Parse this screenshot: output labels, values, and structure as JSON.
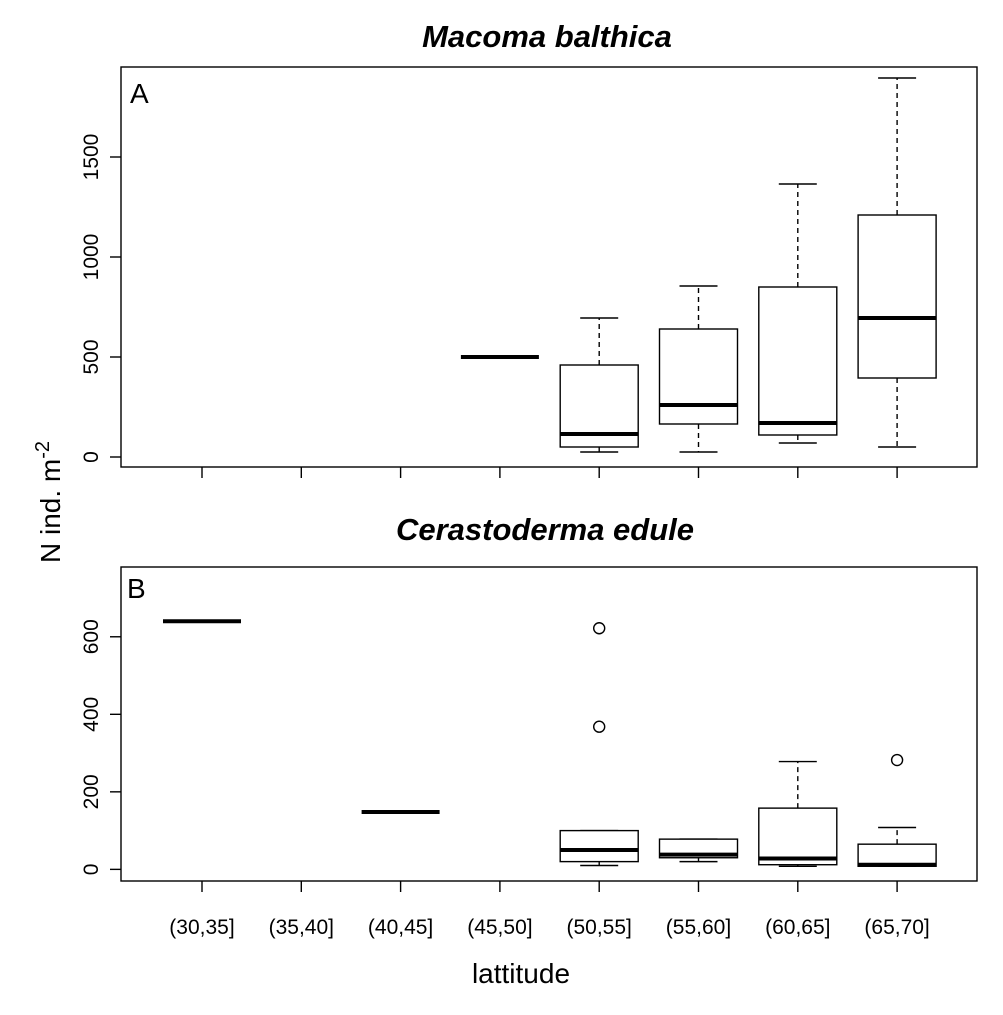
{
  "ylabel": "N ind. m",
  "ylabel_sup": "-2",
  "xlabel": "lattitude",
  "chart_data": [
    {
      "type": "box",
      "title": "Macoma balthica",
      "panel_label": "A",
      "categories": [
        "(30,35]",
        "(35,40]",
        "(40,45]",
        "(45,50]",
        "(50,55]",
        "(55,60]",
        "(60,65]",
        "(65,70]"
      ],
      "ylim": [
        -50,
        1950
      ],
      "yticks": [
        "0",
        "500",
        "1000",
        "1500"
      ],
      "boxes": [
        null,
        null,
        null,
        {
          "min": 500,
          "q1": 500,
          "median": 500,
          "q3": 500,
          "max": 500,
          "outliers": []
        },
        {
          "min": 25,
          "q1": 50,
          "median": 115,
          "q3": 460,
          "max": 695,
          "outliers": []
        },
        {
          "min": 25,
          "q1": 165,
          "median": 260,
          "q3": 640,
          "max": 855,
          "outliers": []
        },
        {
          "min": 70,
          "q1": 110,
          "median": 170,
          "q3": 850,
          "max": 1365,
          "outliers": []
        },
        {
          "min": 50,
          "q1": 395,
          "median": 695,
          "q3": 1210,
          "max": 1895,
          "outliers": []
        }
      ]
    },
    {
      "type": "box",
      "title": "Cerastoderma edule",
      "panel_label": "B",
      "categories": [
        "(30,35]",
        "(35,40]",
        "(40,45]",
        "(45,50]",
        "(50,55]",
        "(55,60]",
        "(60,65]",
        "(65,70]"
      ],
      "ylim": [
        -30,
        780
      ],
      "yticks": [
        "0",
        "200",
        "400",
        "600"
      ],
      "boxes": [
        {
          "min": 640,
          "q1": 640,
          "median": 640,
          "q3": 640,
          "max": 640,
          "outliers": []
        },
        null,
        {
          "min": 148,
          "q1": 148,
          "median": 148,
          "q3": 148,
          "max": 148,
          "outliers": []
        },
        null,
        {
          "min": 10,
          "q1": 20,
          "median": 50,
          "q3": 100,
          "max": 100,
          "outliers": [
            368,
            622
          ]
        },
        {
          "min": 20,
          "q1": 30,
          "median": 38,
          "q3": 78,
          "max": 78,
          "outliers": []
        },
        {
          "min": 8,
          "q1": 12,
          "median": 28,
          "q3": 158,
          "max": 278,
          "outliers": []
        },
        {
          "min": 8,
          "q1": 8,
          "median": 12,
          "q3": 65,
          "max": 108,
          "outliers": [
            282
          ]
        }
      ]
    }
  ]
}
